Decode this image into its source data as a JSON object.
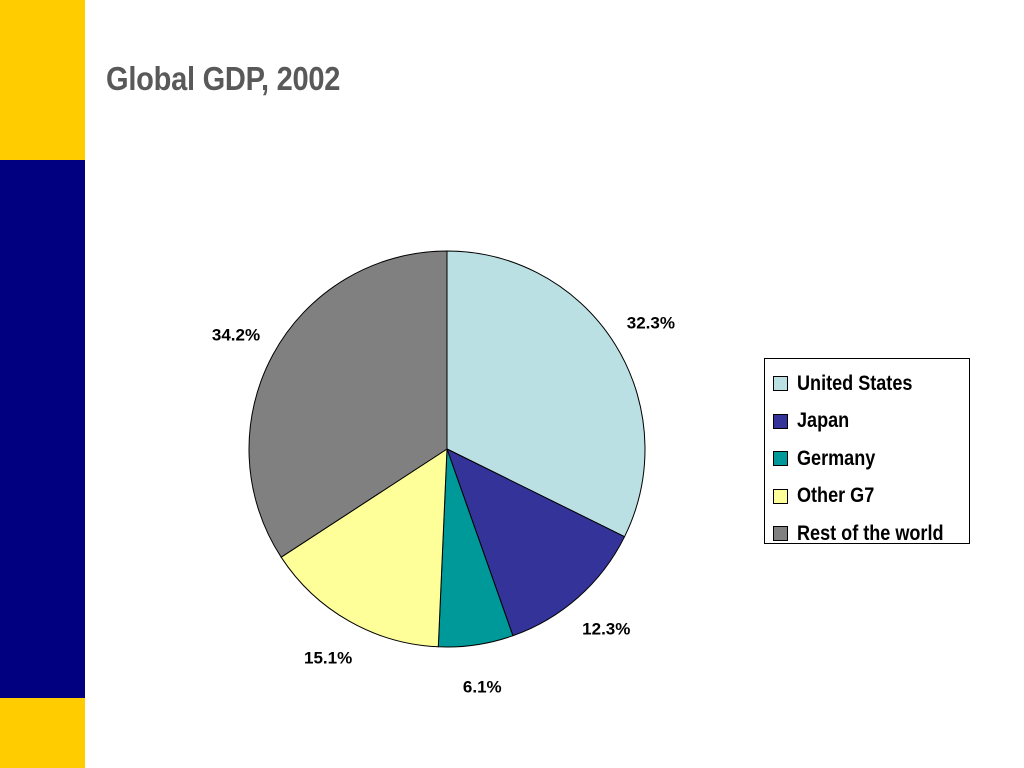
{
  "slide": {
    "colors": {
      "accent_yellow": "#FFCC00",
      "accent_navy": "#000080"
    }
  },
  "chart_data": {
    "type": "pie",
    "title": "Global GDP, 2002",
    "categories": [
      "United States",
      "Japan",
      "Germany",
      "Other G7",
      "Rest of the world"
    ],
    "values": [
      32.3,
      12.3,
      6.1,
      15.1,
      34.2
    ],
    "labels": [
      "32.3%",
      "12.3%",
      "6.1%",
      "15.1%",
      "34.2%"
    ],
    "colors": [
      "#BBE0E3",
      "#333399",
      "#009999",
      "#FFFF99",
      "#808080"
    ],
    "legend_position": "right",
    "start_angle_deg": 0,
    "direction": "clockwise"
  }
}
